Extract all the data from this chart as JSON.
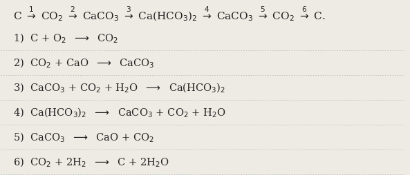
{
  "background_color": "#eeebe4",
  "title_line": "C $\\overset{1}{\\rightarrow}$ CO$_2$ $\\overset{2}{\\rightarrow}$ CaCO$_3$ $\\overset{3}{\\rightarrow}$ Ca(HCO$_3$)$_2$ $\\overset{4}{\\rightarrow}$ CaCO$_3$ $\\overset{5}{\\rightarrow}$ CO$_2$ $\\overset{6}{\\rightarrow}$ C.",
  "reactions": [
    "1)  C + O$_2$  $\\longrightarrow$  CO$_2$",
    "2)  CO$_2$ + CaO  $\\longrightarrow$  CaCO$_3$",
    "3)  CaCO$_3$ + CO$_2$ + H$_2$O  $\\longrightarrow$  Ca(HCO$_3$)$_2$",
    "4)  Ca(HCO$_3$)$_2$  $\\longrightarrow$  CaCO$_3$ + CO$_2$ + H$_2$O",
    "5)  CaCO$_3$  $\\longrightarrow$  CaO + CO$_2$",
    "6)  CO$_2$ + 2H$_2$  $\\longrightarrow$  C + 2H$_2$O"
  ],
  "text_color": "#222222",
  "divider_color": "#aaaaaa",
  "font_size_title": 11,
  "font_size_reactions": 10.5
}
